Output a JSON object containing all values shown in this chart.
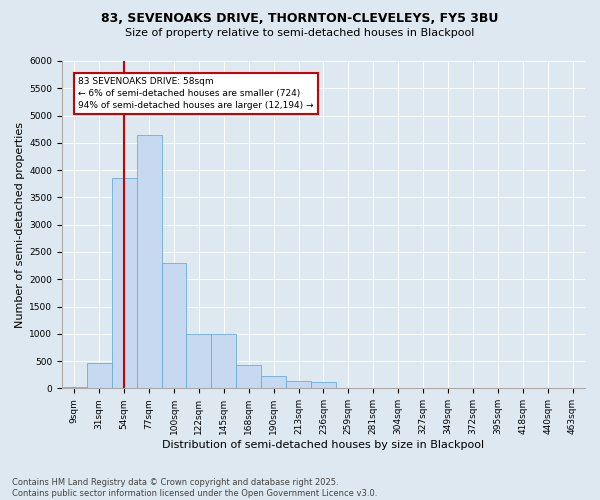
{
  "title1": "83, SEVENOAKS DRIVE, THORNTON-CLEVELEYS, FY5 3BU",
  "title2": "Size of property relative to semi-detached houses in Blackpool",
  "xlabel": "Distribution of semi-detached houses by size in Blackpool",
  "ylabel": "Number of semi-detached properties",
  "categories": [
    "9sqm",
    "31sqm",
    "54sqm",
    "77sqm",
    "100sqm",
    "122sqm",
    "145sqm",
    "168sqm",
    "190sqm",
    "213sqm",
    "236sqm",
    "259sqm",
    "281sqm",
    "304sqm",
    "327sqm",
    "349sqm",
    "372sqm",
    "395sqm",
    "418sqm",
    "440sqm",
    "463sqm"
  ],
  "bar_values": [
    30,
    460,
    3850,
    4650,
    2300,
    1000,
    1000,
    420,
    230,
    130,
    110,
    0,
    0,
    0,
    0,
    0,
    0,
    0,
    0,
    0,
    0
  ],
  "bar_color": "#c6d9f0",
  "bar_edge_color": "#6baed6",
  "property_line_x": 2.0,
  "annotation_text": "83 SEVENOAKS DRIVE: 58sqm\n← 6% of semi-detached houses are smaller (724)\n94% of semi-detached houses are larger (12,194) →",
  "annotation_box_color": "#ffffff",
  "annotation_box_edge": "#cc0000",
  "vline_color": "#cc0000",
  "ylim": [
    0,
    6000
  ],
  "yticks": [
    0,
    500,
    1000,
    1500,
    2000,
    2500,
    3000,
    3500,
    4000,
    4500,
    5000,
    5500,
    6000
  ],
  "background_color": "#dde8f0",
  "plot_bg_color": "#dde8f0",
  "footer": "Contains HM Land Registry data © Crown copyright and database right 2025.\nContains public sector information licensed under the Open Government Licence v3.0.",
  "title_fontsize": 9,
  "subtitle_fontsize": 8,
  "axis_fontsize": 8,
  "tick_fontsize": 6.5,
  "footer_fontsize": 6
}
